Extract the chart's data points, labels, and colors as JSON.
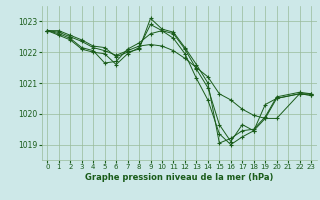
{
  "bg_color": "#cde8e8",
  "grid_color": "#99bb99",
  "line_color": "#1a5c1a",
  "marker_color": "#1a5c1a",
  "xlabel": "Graphe pression niveau de la mer (hPa)",
  "xlim": [
    -0.5,
    23.5
  ],
  "ylim": [
    1018.5,
    1023.5
  ],
  "yticks": [
    1019,
    1020,
    1021,
    1022,
    1023
  ],
  "xticks": [
    0,
    1,
    2,
    3,
    4,
    5,
    6,
    7,
    8,
    9,
    10,
    11,
    12,
    13,
    14,
    15,
    16,
    17,
    18,
    19,
    20,
    21,
    22,
    23
  ],
  "series": [
    [
      1022.7,
      1022.7,
      1022.55,
      1022.4,
      1022.2,
      1022.15,
      1021.85,
      1022.0,
      1022.1,
      1023.1,
      1022.75,
      1022.65,
      1022.15,
      1021.6,
      1021.0,
      1019.05,
      1019.2,
      1019.45,
      1019.5,
      1019.9,
      1020.55,
      1020.7,
      1020.65
    ],
    [
      1022.7,
      1022.65,
      1022.5,
      1022.35,
      1022.15,
      1022.05,
      1021.9,
      1022.05,
      1022.2,
      1022.25,
      1022.2,
      1022.05,
      1021.8,
      1021.5,
      1021.2,
      1020.65,
      1020.45,
      1020.15,
      1019.95,
      1019.85,
      1019.85,
      1020.65,
      1020.65
    ],
    [
      1022.7,
      1022.6,
      1022.45,
      1022.15,
      1022.05,
      1021.65,
      1021.7,
      1022.1,
      1022.3,
      1022.6,
      1022.7,
      1022.45,
      1021.95,
      1021.15,
      1020.45,
      1019.35,
      1019.0,
      1019.25,
      1019.45,
      1019.85,
      1020.5,
      1020.65,
      1020.6
    ],
    [
      1022.7,
      1022.55,
      1022.4,
      1022.1,
      1022.0,
      1021.95,
      1021.6,
      1021.95,
      1022.15,
      1022.9,
      1022.7,
      1022.6,
      1022.1,
      1021.45,
      1020.85,
      1019.65,
      1019.1,
      1019.65,
      1019.45,
      1020.3,
      1020.5,
      1020.65,
      1020.6
    ]
  ],
  "series_x": [
    [
      0,
      1,
      2,
      3,
      4,
      5,
      6,
      7,
      8,
      9,
      10,
      11,
      12,
      13,
      14,
      15,
      16,
      17,
      18,
      19,
      20,
      22,
      23
    ],
    [
      0,
      1,
      2,
      3,
      4,
      5,
      6,
      7,
      8,
      9,
      10,
      11,
      12,
      13,
      14,
      15,
      16,
      17,
      18,
      19,
      20,
      22,
      23
    ],
    [
      0,
      1,
      2,
      3,
      4,
      5,
      6,
      7,
      8,
      9,
      10,
      11,
      12,
      13,
      14,
      15,
      16,
      17,
      18,
      19,
      20,
      22,
      23
    ],
    [
      0,
      1,
      2,
      3,
      4,
      5,
      6,
      7,
      8,
      9,
      10,
      11,
      12,
      13,
      14,
      15,
      16,
      17,
      18,
      19,
      20,
      22,
      23
    ]
  ]
}
